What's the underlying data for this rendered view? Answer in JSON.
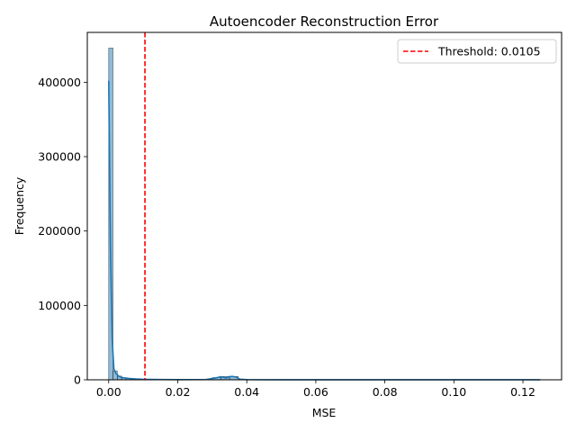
{
  "chart_data": {
    "type": "histogram",
    "title": "Autoencoder Reconstruction Error",
    "xlabel": "MSE",
    "ylabel": "Frequency",
    "xlim": [
      -0.0062,
      0.1312
    ],
    "ylim": [
      0,
      467000
    ],
    "x_ticks": [
      0.0,
      0.02,
      0.04,
      0.06,
      0.08,
      0.1,
      0.12
    ],
    "x_tick_labels": [
      "0.00",
      "0.02",
      "0.04",
      "0.06",
      "0.08",
      "0.10",
      "0.12"
    ],
    "y_ticks": [
      0,
      100000,
      200000,
      300000,
      400000
    ],
    "y_tick_labels": [
      "0",
      "100000",
      "200000",
      "300000",
      "400000"
    ],
    "bins": [
      {
        "x0": 0.0,
        "x1": 0.00125,
        "count": 446000
      },
      {
        "x0": 0.00125,
        "x1": 0.0025,
        "count": 12000
      },
      {
        "x0": 0.0025,
        "x1": 0.00375,
        "count": 5000
      },
      {
        "x0": 0.00375,
        "x1": 0.005,
        "count": 2500
      },
      {
        "x0": 0.005,
        "x1": 0.00625,
        "count": 1500
      },
      {
        "x0": 0.00625,
        "x1": 0.0075,
        "count": 800
      },
      {
        "x0": 0.0075,
        "x1": 0.00875,
        "count": 500
      },
      {
        "x0": 0.00875,
        "x1": 0.01,
        "count": 300
      },
      {
        "x0": 0.01,
        "x1": 0.03,
        "count": 150
      },
      {
        "x0": 0.03,
        "x1": 0.0325,
        "count": 3000
      },
      {
        "x0": 0.0325,
        "x1": 0.035,
        "count": 4500
      },
      {
        "x0": 0.035,
        "x1": 0.0375,
        "count": 4500
      },
      {
        "x0": 0.0375,
        "x1": 0.125,
        "count": 80
      }
    ],
    "kde": {
      "x": [
        0.0,
        0.0005,
        0.001,
        0.0015,
        0.002,
        0.003,
        0.004,
        0.006,
        0.008,
        0.01,
        0.015,
        0.02,
        0.028,
        0.031,
        0.0325,
        0.034,
        0.035,
        0.036,
        0.037,
        0.038,
        0.04,
        0.05,
        0.08,
        0.1,
        0.125
      ],
      "y": [
        402000,
        180000,
        55000,
        15000,
        9000,
        4500,
        3000,
        1800,
        1100,
        700,
        400,
        250,
        300,
        2500,
        4200,
        2400,
        4300,
        4500,
        3500,
        800,
        200,
        100,
        60,
        40,
        20
      ]
    },
    "bar_color": "#1f77b4",
    "threshold": {
      "value": 0.0105,
      "color": "#ff0000",
      "style": "dashed"
    },
    "legend": {
      "placement": "top-right",
      "label": "Threshold: 0.0105"
    }
  }
}
